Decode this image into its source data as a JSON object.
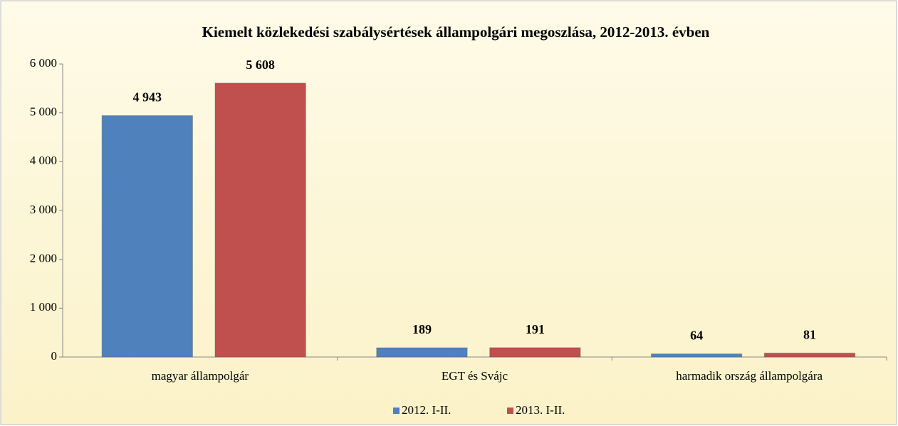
{
  "chart_data": {
    "type": "bar",
    "title": "Kiemelt közlekedési szabálysértések állampolgári megoszlása, 2012-2013. évben",
    "categories": [
      "magyar állampolgár",
      "EGT és Svájc",
      "harmadik ország állampolgára"
    ],
    "series": [
      {
        "name": "2012. I-II.",
        "color": "#4f81bd",
        "values": [
          4943,
          189,
          64
        ],
        "value_labels": [
          "4 943",
          "189",
          "64"
        ]
      },
      {
        "name": "2013. I-II.",
        "color": "#c0504d",
        "values": [
          5608,
          191,
          81
        ],
        "value_labels": [
          "5 608",
          "191",
          "81"
        ]
      }
    ],
    "ylim": [
      0,
      6000
    ],
    "yticks": [
      0,
      {
        "value": 1000,
        "label": "1 000"
      },
      {
        "value": 2000,
        "label": "2 000"
      },
      {
        "value": 3000,
        "label": "3 000"
      },
      {
        "value": 4000,
        "label": "4 000"
      },
      {
        "value": 5000,
        "label": "5 000"
      },
      {
        "value": 6000,
        "label": "6 000"
      }
    ],
    "legend": "bottom"
  }
}
